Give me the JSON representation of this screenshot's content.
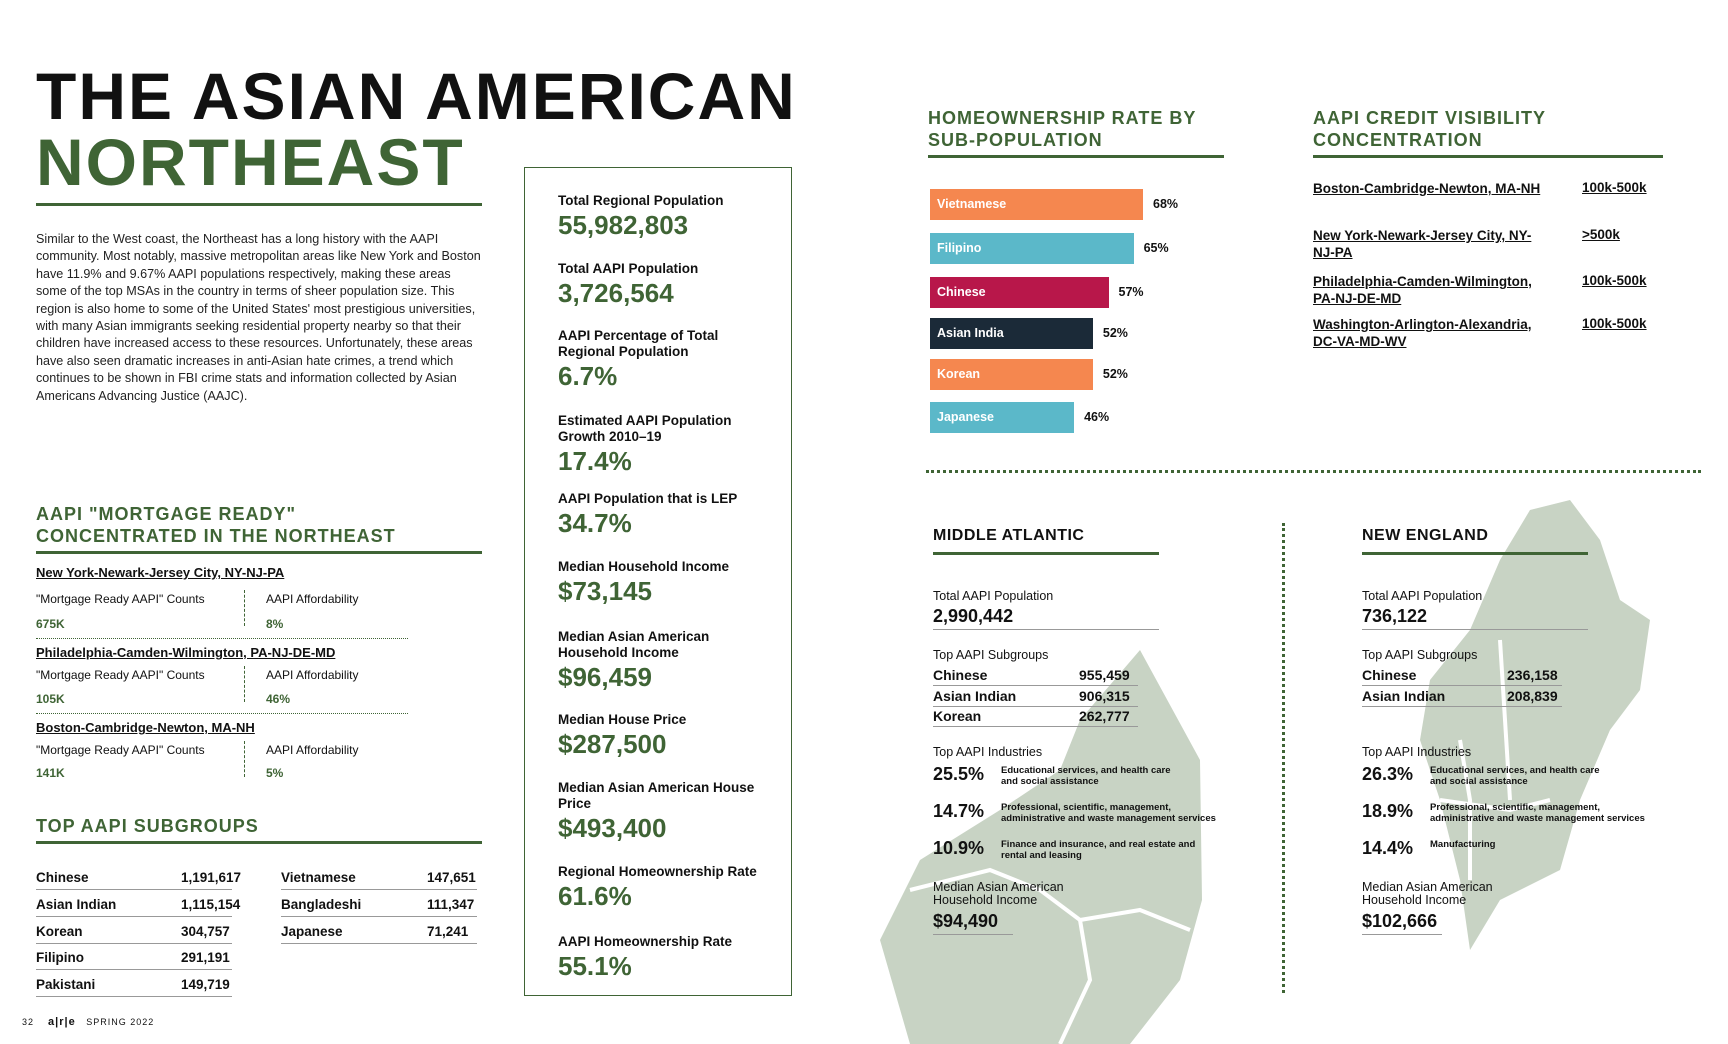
{
  "title": {
    "line1": "THE ASIAN AMERICAN",
    "line2": "NORTHEAST"
  },
  "intro": "Similar to the West coast, the Northeast has a long history with the AAPI community. Most notably, massive metropolitan areas like New York and Boston have 11.9% and 9.67% AAPI populations respectively, making these areas some of the top MSAs in the country in terms of sheer population size. This region is also home to some of the United States' most prestigious universities, with many Asian immigrants seeking residential property nearby so that their children have increased access to these resources. Unfortunately, these areas have also seen dramatic increases in anti-Asian hate crimes, a trend which continues to be shown in FBI crime stats and information collected by Asian Americans Advancing Justice (AAJC).",
  "mortgage_ready": {
    "heading_line1": "AAPI \"MORTGAGE READY\"",
    "heading_line2": "CONCENTRATED IN THE NORTHEAST",
    "count_label": "\"Mortgage Ready AAPI\" Counts",
    "afford_label": "AAPI Affordability",
    "cities": [
      {
        "name": "New York-Newark-Jersey City, NY-NJ-PA",
        "count": "675K",
        "afford": "8%"
      },
      {
        "name": "Philadelphia-Camden-Wilmington, PA-NJ-DE-MD",
        "count": "105K",
        "afford": "46%"
      },
      {
        "name": "Boston-Cambridge-Newton, MA-NH",
        "count": "141K",
        "afford": "5%"
      }
    ]
  },
  "subgroups": {
    "heading": "TOP AAPI SUBGROUPS",
    "left": [
      {
        "name": "Chinese",
        "value": "1,191,617"
      },
      {
        "name": "Asian Indian",
        "value": "1,115,154"
      },
      {
        "name": "Korean",
        "value": "304,757"
      },
      {
        "name": "Filipino",
        "value": "291,191"
      },
      {
        "name": "Pakistani",
        "value": "149,719"
      }
    ],
    "right": [
      {
        "name": "Vietnamese",
        "value": "147,651"
      },
      {
        "name": "Bangladeshi",
        "value": "111,347"
      },
      {
        "name": "Japanese",
        "value": "71,241"
      }
    ]
  },
  "stats": [
    {
      "label": "Total Regional Population",
      "value": "55,982,803"
    },
    {
      "label": "Total AAPI Population",
      "value": "3,726,564"
    },
    {
      "label": "AAPI Percentage of Total Regional Population",
      "value": "6.7%"
    },
    {
      "label": "Estimated AAPI Population Growth 2010–19",
      "value": "17.4%"
    },
    {
      "label": "AAPI Population that is LEP",
      "value": "34.7%"
    },
    {
      "label": "Median Household Income",
      "value": "$73,145"
    },
    {
      "label": "Median Asian American Household Income",
      "value": "$96,459"
    },
    {
      "label": "Median House Price",
      "value": "$287,500"
    },
    {
      "label": "Median Asian American House Price",
      "value": "$493,400"
    },
    {
      "label": "Regional Homeownership Rate",
      "value": "61.6%"
    },
    {
      "label": "AAPI Homeownership Rate",
      "value": "55.1%"
    }
  ],
  "chart_data": {
    "type": "bar",
    "title": "HOMEOWNERSHIP RATE BY SUB-POPULATION",
    "title_line1": "HOMEOWNERSHIP RATE BY",
    "title_line2": "SUB-POPULATION",
    "categories": [
      "Vietnamese",
      "Filipino",
      "Chinese",
      "Asian India",
      "Korean",
      "Japanese"
    ],
    "values": [
      68,
      65,
      57,
      52,
      52,
      46
    ],
    "labels": [
      "68%",
      "65%",
      "57%",
      "52%",
      "52%",
      "46%"
    ],
    "colors": [
      "#f5874f",
      "#5bb8c9",
      "#b8174a",
      "#1b2a38",
      "#f5874f",
      "#5bb8c9"
    ],
    "xlabel": "",
    "ylabel": "",
    "orientation": "horizontal"
  },
  "credit": {
    "heading_line1": "AAPI CREDIT VISIBILITY",
    "heading_line2": "CONCENTRATION",
    "rows": [
      {
        "city": "Boston-Cambridge-Newton, MA-NH",
        "value": "100k-500k"
      },
      {
        "city": "New York-Newark-Jersey City, NY-NJ-PA",
        "value": ">500k"
      },
      {
        "city": "Philadelphia-Camden-Wilmington, PA-NJ-DE-MD",
        "value": "100k-500k"
      },
      {
        "city": "Washington-Arlington-Alexandria, DC-VA-MD-WV",
        "value": "100k-500k"
      }
    ]
  },
  "regions": {
    "mid": {
      "heading": "MIDDLE ATLANTIC",
      "pop_label": "Total AAPI Population",
      "pop": "2,990,442",
      "sub_label": "Top AAPI Subgroups",
      "subs": [
        {
          "name": "Chinese",
          "value": "955,459"
        },
        {
          "name": "Asian Indian",
          "value": "906,315"
        },
        {
          "name": "Korean",
          "value": "262,777"
        }
      ],
      "ind_label": "Top AAPI Industries",
      "inds": [
        {
          "pct": "25.5%",
          "desc1": "Educational services, and health care",
          "desc2": "and social assistance"
        },
        {
          "pct": "14.7%",
          "desc1": "Professional, scientific, management,",
          "desc2": "administrative and waste management services"
        },
        {
          "pct": "10.9%",
          "desc1": "Finance and insurance, and real estate and",
          "desc2": "rental and leasing"
        }
      ],
      "inc_label1": "Median Asian American",
      "inc_label2": "Household Income",
      "inc": "$94,490"
    },
    "ne": {
      "heading": "NEW ENGLAND",
      "pop_label": "Total AAPI Population",
      "pop": "736,122",
      "sub_label": "Top AAPI Subgroups",
      "subs": [
        {
          "name": "Chinese",
          "value": "236,158"
        },
        {
          "name": "Asian Indian",
          "value": "208,839"
        }
      ],
      "ind_label": "Top AAPI Industries",
      "inds": [
        {
          "pct": "26.3%",
          "desc1": "Educational services, and health care",
          "desc2": "and social assistance"
        },
        {
          "pct": "18.9%",
          "desc1": "Professional, scientific, management,",
          "desc2": "administrative and waste management services"
        },
        {
          "pct": "14.4%",
          "desc1": "Manufacturing",
          "desc2": ""
        }
      ],
      "inc_label1": "Median Asian American",
      "inc_label2": "Household Income",
      "inc": "$102,666"
    }
  },
  "footer": {
    "page": "32",
    "brand": "a|r|e",
    "issue": "SPRING 2022"
  },
  "colors": {
    "accent": "#3f6435",
    "map": "#c8d3c4"
  }
}
